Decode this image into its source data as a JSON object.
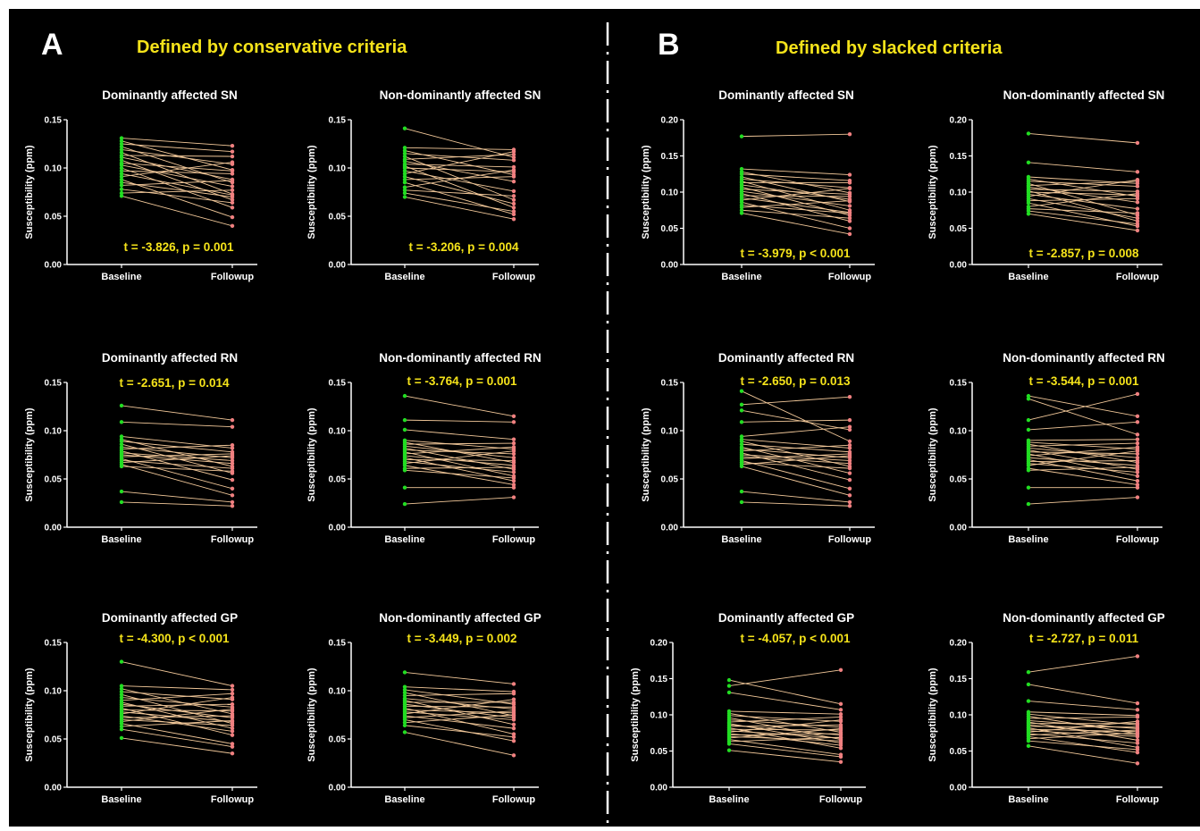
{
  "figure": {
    "panels": [
      {
        "letter": "A",
        "heading": "Defined by conservative criteria"
      },
      {
        "letter": "B",
        "heading": "Defined by slacked criteria"
      }
    ],
    "colors": {
      "background": "#000000",
      "text": "#ffffff",
      "heading": "#f5e31a",
      "baseline_point": "#22dd22",
      "followup_point": "#f08080",
      "connector": "#f3c99a",
      "divider": "#ffffff"
    }
  },
  "chart_data": [
    {
      "type": "line",
      "panel": "A",
      "title": "Dominantly affected SN",
      "stat": "t = -3.826, p = 0.001",
      "ylabel": "Susceptibility (ppm)",
      "categories": [
        "Baseline",
        "Followup"
      ],
      "ylim": [
        0,
        0.15
      ],
      "yticks": [
        "0.00",
        "0.05",
        "0.10",
        "0.15"
      ],
      "baseline": [
        0.131,
        0.128,
        0.125,
        0.122,
        0.119,
        0.116,
        0.113,
        0.111,
        0.108,
        0.105,
        0.103,
        0.1,
        0.097,
        0.094,
        0.091,
        0.088,
        0.085,
        0.082,
        0.078,
        0.074,
        0.071
      ],
      "followup": [
        0.123,
        0.098,
        0.117,
        0.085,
        0.104,
        0.073,
        0.112,
        0.088,
        0.067,
        0.097,
        0.081,
        0.059,
        0.094,
        0.072,
        0.106,
        0.049,
        0.07,
        0.087,
        0.064,
        0.077,
        0.04
      ]
    },
    {
      "type": "line",
      "panel": "A",
      "title": "Non-dominantly affected SN",
      "stat": "t = -3.206, p = 0.004",
      "ylabel": "Susceptibility (ppm)",
      "categories": [
        "Baseline",
        "Followup"
      ],
      "ylim": [
        0,
        0.15
      ],
      "yticks": [
        "0.00",
        "0.05",
        "0.10",
        "0.15"
      ],
      "baseline": [
        0.141,
        0.121,
        0.118,
        0.115,
        0.112,
        0.109,
        0.107,
        0.104,
        0.102,
        0.1,
        0.097,
        0.094,
        0.091,
        0.088,
        0.085,
        0.08,
        0.077,
        0.074,
        0.07
      ],
      "followup": [
        0.111,
        0.119,
        0.093,
        0.108,
        0.067,
        0.114,
        0.086,
        0.101,
        0.059,
        0.096,
        0.076,
        0.117,
        0.063,
        0.091,
        0.052,
        0.098,
        0.071,
        0.055,
        0.047
      ]
    },
    {
      "type": "line",
      "panel": "B",
      "title": "Dominantly affected SN",
      "stat": "t = -3.979, p < 0.001",
      "ylabel": "Susceptibility (ppm)",
      "categories": [
        "Baseline",
        "Followup"
      ],
      "ylim": [
        0,
        0.2
      ],
      "yticks": [
        "0.00",
        "0.05",
        "0.10",
        "0.15",
        "0.20"
      ],
      "baseline": [
        0.177,
        0.132,
        0.128,
        0.125,
        0.121,
        0.118,
        0.115,
        0.113,
        0.11,
        0.107,
        0.104,
        0.101,
        0.098,
        0.095,
        0.092,
        0.089,
        0.086,
        0.082,
        0.079,
        0.075,
        0.071
      ],
      "followup": [
        0.18,
        0.124,
        0.099,
        0.116,
        0.087,
        0.106,
        0.075,
        0.113,
        0.09,
        0.068,
        0.097,
        0.081,
        0.06,
        0.094,
        0.072,
        0.105,
        0.05,
        0.071,
        0.088,
        0.064,
        0.042
      ]
    },
    {
      "type": "line",
      "panel": "B",
      "title": "Non-dominantly affected SN",
      "stat": "t = -2.857, p = 0.008",
      "ylabel": "Susceptibility (ppm)",
      "categories": [
        "Baseline",
        "Followup"
      ],
      "ylim": [
        0,
        0.2
      ],
      "yticks": [
        "0.00",
        "0.05",
        "0.10",
        "0.15",
        "0.20"
      ],
      "baseline": [
        0.181,
        0.141,
        0.121,
        0.118,
        0.115,
        0.112,
        0.109,
        0.107,
        0.104,
        0.102,
        0.1,
        0.097,
        0.094,
        0.091,
        0.088,
        0.085,
        0.08,
        0.077,
        0.074,
        0.07
      ],
      "followup": [
        0.168,
        0.128,
        0.112,
        0.094,
        0.108,
        0.068,
        0.115,
        0.086,
        0.101,
        0.06,
        0.096,
        0.077,
        0.117,
        0.064,
        0.091,
        0.053,
        0.098,
        0.071,
        0.056,
        0.047
      ]
    },
    {
      "type": "line",
      "panel": "A",
      "title": "Dominantly affected RN",
      "stat": "t = -2.651, p = 0.014",
      "ylabel": "Susceptibility (ppm)",
      "categories": [
        "Baseline",
        "Followup"
      ],
      "ylim": [
        0,
        0.15
      ],
      "yticks": [
        "0.00",
        "0.05",
        "0.10",
        "0.15"
      ],
      "baseline": [
        0.126,
        0.109,
        0.094,
        0.091,
        0.089,
        0.086,
        0.083,
        0.081,
        0.079,
        0.077,
        0.075,
        0.073,
        0.071,
        0.069,
        0.067,
        0.065,
        0.063,
        0.037,
        0.026
      ],
      "followup": [
        0.111,
        0.104,
        0.082,
        0.063,
        0.078,
        0.056,
        0.072,
        0.085,
        0.049,
        0.069,
        0.066,
        0.076,
        0.04,
        0.061,
        0.074,
        0.033,
        0.058,
        0.026,
        0.022
      ]
    },
    {
      "type": "line",
      "panel": "A",
      "title": "Non-dominantly affected RN",
      "stat": "t = -3.764, p = 0.001",
      "ylabel": "Susceptibility (ppm)",
      "categories": [
        "Baseline",
        "Followup"
      ],
      "ylim": [
        0,
        0.15
      ],
      "yticks": [
        "0.00",
        "0.05",
        "0.10",
        "0.15"
      ],
      "baseline": [
        0.136,
        0.111,
        0.101,
        0.09,
        0.088,
        0.086,
        0.084,
        0.082,
        0.08,
        0.078,
        0.076,
        0.074,
        0.072,
        0.07,
        0.068,
        0.066,
        0.064,
        0.061,
        0.059,
        0.041,
        0.024
      ],
      "followup": [
        0.115,
        0.109,
        0.091,
        0.081,
        0.067,
        0.087,
        0.072,
        0.06,
        0.076,
        0.053,
        0.083,
        0.064,
        0.048,
        0.069,
        0.057,
        0.079,
        0.044,
        0.062,
        0.051,
        0.041,
        0.031
      ]
    },
    {
      "type": "line",
      "panel": "B",
      "title": "Dominantly affected RN",
      "stat": "t = -2.650, p = 0.013",
      "ylabel": "Susceptibility (ppm)",
      "categories": [
        "Baseline",
        "Followup"
      ],
      "ylim": [
        0,
        0.15
      ],
      "yticks": [
        "0.00",
        "0.05",
        "0.10",
        "0.15"
      ],
      "baseline": [
        0.141,
        0.127,
        0.121,
        0.109,
        0.094,
        0.091,
        0.089,
        0.086,
        0.083,
        0.081,
        0.079,
        0.077,
        0.075,
        0.073,
        0.071,
        0.069,
        0.067,
        0.065,
        0.063,
        0.037,
        0.026
      ],
      "followup": [
        0.089,
        0.135,
        0.101,
        0.111,
        0.104,
        0.082,
        0.063,
        0.078,
        0.056,
        0.072,
        0.085,
        0.049,
        0.069,
        0.066,
        0.076,
        0.04,
        0.061,
        0.074,
        0.033,
        0.026,
        0.022
      ]
    },
    {
      "type": "line",
      "panel": "B",
      "title": "Non-dominantly affected RN",
      "stat": "t = -3.544, p = 0.001",
      "ylabel": "Susceptibility (ppm)",
      "categories": [
        "Baseline",
        "Followup"
      ],
      "ylim": [
        0,
        0.15
      ],
      "yticks": [
        "0.00",
        "0.05",
        "0.10",
        "0.15"
      ],
      "baseline": [
        0.136,
        0.133,
        0.111,
        0.101,
        0.09,
        0.088,
        0.086,
        0.084,
        0.082,
        0.08,
        0.078,
        0.076,
        0.074,
        0.072,
        0.07,
        0.068,
        0.066,
        0.064,
        0.061,
        0.059,
        0.041,
        0.024
      ],
      "followup": [
        0.115,
        0.096,
        0.138,
        0.109,
        0.091,
        0.081,
        0.067,
        0.087,
        0.072,
        0.06,
        0.076,
        0.053,
        0.083,
        0.064,
        0.048,
        0.069,
        0.057,
        0.079,
        0.044,
        0.062,
        0.041,
        0.031
      ]
    },
    {
      "type": "line",
      "panel": "A",
      "title": "Dominantly affected GP",
      "stat": "t = -4.300, p < 0.001",
      "ylabel": "Susceptibility (ppm)",
      "categories": [
        "Baseline",
        "Followup"
      ],
      "ylim": [
        0,
        0.15
      ],
      "yticks": [
        "0.00",
        "0.05",
        "0.10",
        "0.15"
      ],
      "baseline": [
        0.13,
        0.105,
        0.102,
        0.099,
        0.096,
        0.093,
        0.09,
        0.088,
        0.086,
        0.084,
        0.082,
        0.08,
        0.078,
        0.076,
        0.074,
        0.072,
        0.07,
        0.068,
        0.066,
        0.063,
        0.06,
        0.051
      ],
      "followup": [
        0.105,
        0.101,
        0.076,
        0.091,
        0.066,
        0.083,
        0.097,
        0.061,
        0.072,
        0.086,
        0.054,
        0.079,
        0.068,
        0.093,
        0.058,
        0.074,
        0.064,
        0.081,
        0.045,
        0.069,
        0.042,
        0.035
      ]
    },
    {
      "type": "line",
      "panel": "A",
      "title": "Non-dominantly affected GP",
      "stat": "t = -3.449, p = 0.002",
      "ylabel": "Susceptibility (ppm)",
      "categories": [
        "Baseline",
        "Followup"
      ],
      "ylim": [
        0,
        0.15
      ],
      "yticks": [
        "0.00",
        "0.05",
        "0.10",
        "0.15"
      ],
      "baseline": [
        0.119,
        0.104,
        0.101,
        0.098,
        0.095,
        0.092,
        0.09,
        0.088,
        0.086,
        0.084,
        0.082,
        0.08,
        0.078,
        0.076,
        0.074,
        0.072,
        0.07,
        0.067,
        0.064,
        0.057
      ],
      "followup": [
        0.107,
        0.099,
        0.086,
        0.074,
        0.097,
        0.081,
        0.065,
        0.088,
        0.072,
        0.083,
        0.055,
        0.077,
        0.07,
        0.091,
        0.061,
        0.079,
        0.048,
        0.075,
        0.052,
        0.033
      ]
    },
    {
      "type": "line",
      "panel": "B",
      "title": "Dominantly affected GP",
      "stat": "t = -4.057, p < 0.001",
      "ylabel": "Susceptibility (ppm)",
      "categories": [
        "Baseline",
        "Followup"
      ],
      "ylim": [
        0,
        0.2
      ],
      "yticks": [
        "0.00",
        "0.05",
        "0.10",
        "0.15",
        "0.20"
      ],
      "baseline": [
        0.148,
        0.14,
        0.131,
        0.105,
        0.102,
        0.099,
        0.096,
        0.093,
        0.09,
        0.088,
        0.086,
        0.084,
        0.082,
        0.08,
        0.078,
        0.076,
        0.074,
        0.072,
        0.07,
        0.068,
        0.066,
        0.063,
        0.06,
        0.051
      ],
      "followup": [
        0.115,
        0.162,
        0.107,
        0.101,
        0.076,
        0.091,
        0.066,
        0.083,
        0.097,
        0.061,
        0.072,
        0.086,
        0.054,
        0.079,
        0.068,
        0.093,
        0.058,
        0.074,
        0.064,
        0.081,
        0.045,
        0.069,
        0.042,
        0.035
      ]
    },
    {
      "type": "line",
      "panel": "B",
      "title": "Non-dominantly affected GP",
      "stat": "t = -2.727, p = 0.011",
      "ylabel": "Susceptibility (ppm)",
      "categories": [
        "Baseline",
        "Followup"
      ],
      "ylim": [
        0,
        0.2
      ],
      "yticks": [
        "0.00",
        "0.05",
        "0.10",
        "0.15",
        "0.20"
      ],
      "baseline": [
        0.159,
        0.142,
        0.119,
        0.104,
        0.101,
        0.098,
        0.095,
        0.092,
        0.09,
        0.088,
        0.086,
        0.084,
        0.082,
        0.08,
        0.078,
        0.076,
        0.074,
        0.072,
        0.07,
        0.067,
        0.064,
        0.057
      ],
      "followup": [
        0.181,
        0.116,
        0.107,
        0.099,
        0.086,
        0.074,
        0.097,
        0.081,
        0.065,
        0.088,
        0.072,
        0.083,
        0.055,
        0.077,
        0.07,
        0.091,
        0.061,
        0.079,
        0.048,
        0.075,
        0.052,
        0.033
      ]
    }
  ]
}
